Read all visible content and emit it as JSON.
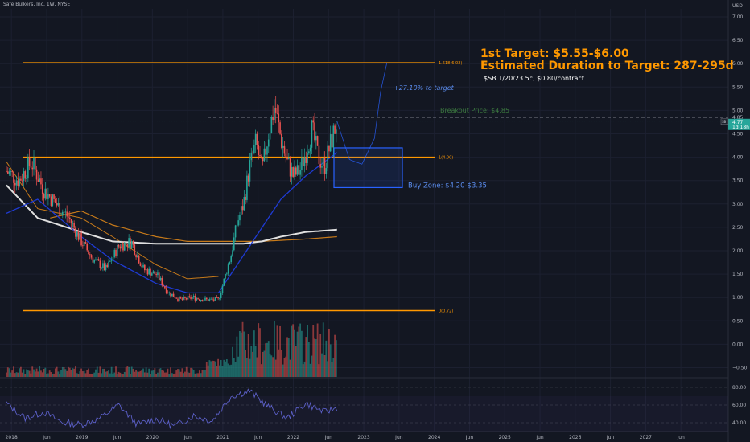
{
  "chart_title": "Safe Bulkers, Inc, 1W, NYSE",
  "annotations": {
    "target_line1": "1st Target: $5.55-$6.00",
    "target_line2": "Estimated Duration to Target: 287-295d",
    "option_note": "$SB 1/20/23 5c, $0.80/contract",
    "pct_to_target": "+27.10% to target",
    "breakout": "Breakout Price: $4.85",
    "buy_zone": "Buy Zone: $4.20-$3.35",
    "fib_1618": "1.618(6.02)",
    "fib_1": "1(4.00)",
    "fib_0": "0(0.72)"
  },
  "colors": {
    "background": "#131722",
    "orange": "#ff9800",
    "blue": "#2962ff",
    "blue_text": "#5b8def",
    "green": "#26a69a",
    "red": "#ef5350",
    "ma_white": "#e0e0e0",
    "ma_navy": "#1f3bd4",
    "breakout_green": "#3c7a3f"
  },
  "price_axis": {
    "currency": "USD",
    "ticks": [
      "7.00",
      "6.50",
      "6.00",
      "5.50",
      "5.00",
      "4.50",
      "4.00",
      "3.50",
      "3.00",
      "2.50",
      "2.00",
      "1.50",
      "1.00",
      "0.50",
      "0.00",
      "−0.50"
    ],
    "tag_breakout": "4.85",
    "tag_price": "4.77",
    "tag_countdown": "1d 18h",
    "tag_symbol": "SB"
  },
  "time_axis": {
    "labels": [
      "2018",
      "Jun",
      "2019",
      "Jun",
      "2020",
      "Jun",
      "2021",
      "Jun",
      "2022",
      "Jun",
      "2023",
      "Jun",
      "2024",
      "Jun",
      "2025",
      "Jun",
      "2026",
      "Jun",
      "2027",
      "Jun"
    ]
  },
  "rsi_axis": {
    "ticks": [
      "80.00",
      "60.00",
      "40.00"
    ]
  },
  "chart_data": {
    "type": "line",
    "title": "Safe Bulkers, Inc, 1W, NYSE",
    "ylabel": "USD",
    "ylim": [
      -0.5,
      7.0
    ],
    "x_range": [
      "2018-01",
      "2027-09"
    ],
    "price_close": {
      "x": [
        "2018-01",
        "2018-03",
        "2018-05",
        "2018-07",
        "2018-09",
        "2018-11",
        "2019-01",
        "2019-03",
        "2019-05",
        "2019-07",
        "2019-09",
        "2019-11",
        "2020-01",
        "2020-03",
        "2020-05",
        "2020-07",
        "2020-09",
        "2020-11",
        "2021-01",
        "2021-02",
        "2021-03",
        "2021-04",
        "2021-05",
        "2021-06",
        "2021-07",
        "2021-08",
        "2021-09",
        "2021-10",
        "2021-11",
        "2021-12",
        "2022-01",
        "2022-02",
        "2022-03",
        "2022-04",
        "2022-05",
        "2022-06"
      ],
      "values": [
        3.7,
        3.5,
        3.9,
        3.3,
        3.0,
        2.7,
        2.2,
        1.8,
        1.6,
        2.1,
        2.2,
        1.6,
        1.5,
        1.1,
        0.95,
        1.0,
        0.95,
        0.95,
        1.9,
        2.6,
        3.0,
        3.8,
        4.3,
        3.7,
        4.5,
        5.1,
        4.4,
        3.9,
        3.6,
        3.7,
        4.1,
        4.6,
        4.0,
        3.8,
        4.3,
        4.77
      ]
    },
    "ma_fast": {
      "x": [
        "2018-01",
        "2018-06",
        "2019-01",
        "2019-06",
        "2020-01",
        "2020-06",
        "2020-11",
        "2021-03",
        "2021-06",
        "2021-09",
        "2022-01",
        "2022-06"
      ],
      "values": [
        2.8,
        3.1,
        2.3,
        1.8,
        1.3,
        1.1,
        1.1,
        1.9,
        2.5,
        3.1,
        3.6,
        4.1
      ]
    },
    "ma_slow": {
      "x": [
        "2018-01",
        "2018-06",
        "2019-01",
        "2019-06",
        "2020-01",
        "2020-06",
        "2020-11",
        "2021-03",
        "2021-06",
        "2021-09",
        "2022-01",
        "2022-06"
      ],
      "values": [
        3.4,
        2.7,
        2.4,
        2.2,
        2.15,
        2.15,
        2.15,
        2.15,
        2.2,
        2.3,
        2.4,
        2.45
      ]
    },
    "ma_long_orange": {
      "x": [
        "2018-01",
        "2018-06",
        "2019-01",
        "2019-06",
        "2020-01",
        "2020-06",
        "2020-11"
      ],
      "values": [
        3.9,
        2.9,
        2.7,
        2.3,
        1.7,
        1.4,
        1.45
      ]
    },
    "ma_mid_orange": {
      "x": [
        "2018-08",
        "2019-01",
        "2019-06",
        "2020-01",
        "2020-06",
        "2020-11",
        "2021-06",
        "2022-01",
        "2022-06"
      ],
      "values": [
        2.7,
        2.85,
        2.55,
        2.3,
        2.2,
        2.2,
        2.2,
        2.25,
        2.3
      ]
    },
    "fib_levels": [
      6.02,
      4.0,
      0.72
    ],
    "breakout_price": 4.85,
    "buy_zone": [
      3.35,
      4.2
    ],
    "projection": {
      "x": [
        "2022-06",
        "2022-08",
        "2022-10",
        "2022-12",
        "2023-01",
        "2023-02"
      ],
      "values": [
        4.77,
        3.95,
        3.85,
        4.4,
        5.4,
        6.02
      ]
    },
    "rsi": {
      "ylim": [
        30,
        90
      ],
      "x": [
        "2018-01",
        "2018-04",
        "2018-07",
        "2018-10",
        "2019-01",
        "2019-04",
        "2019-07",
        "2019-10",
        "2020-01",
        "2020-04",
        "2020-07",
        "2020-10",
        "2021-01",
        "2021-04",
        "2021-07",
        "2021-10",
        "2022-01",
        "2022-04",
        "2022-06"
      ],
      "values": [
        62,
        45,
        52,
        40,
        38,
        45,
        60,
        38,
        44,
        36,
        48,
        42,
        70,
        76,
        58,
        45,
        62,
        52,
        57
      ]
    }
  }
}
